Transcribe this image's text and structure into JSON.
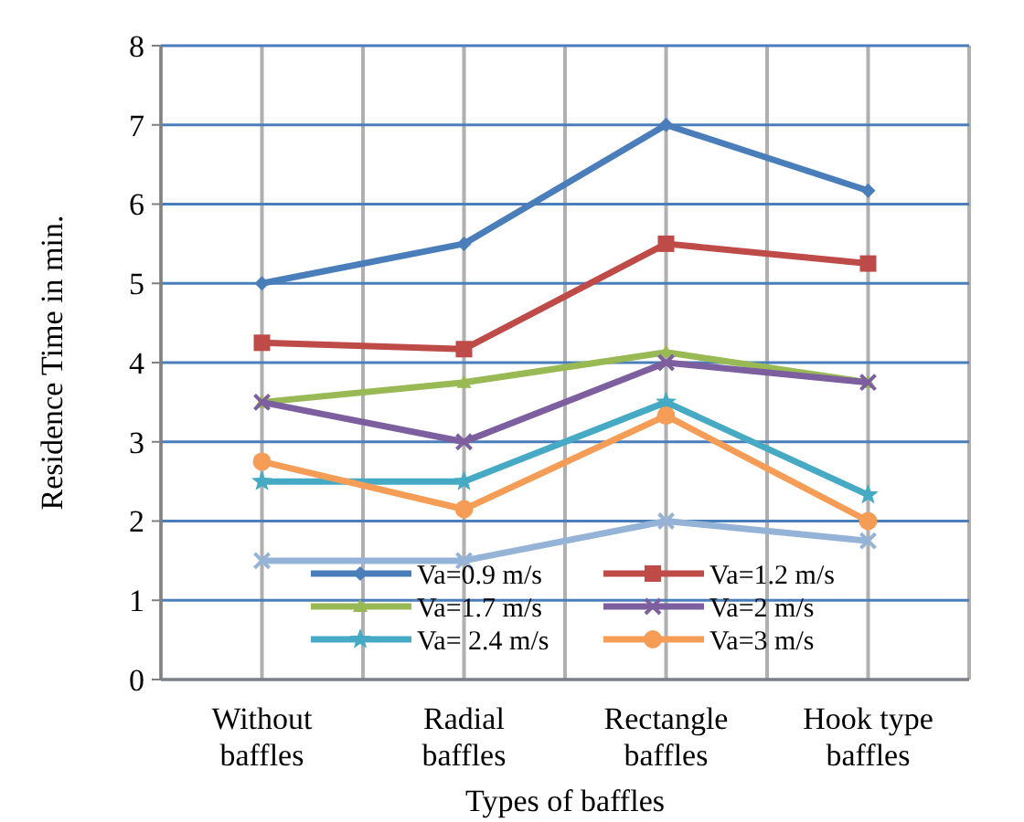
{
  "chart_data": {
    "type": "line",
    "xlabel": "Types of baffles",
    "ylabel": "Residence Time in min.",
    "categories": [
      "Without baffles",
      "Radial baffles",
      "Rectangle baffles",
      "Hook type baffles"
    ],
    "ylim": [
      0,
      8
    ],
    "yticks": [
      0,
      1,
      2,
      3,
      4,
      5,
      6,
      7,
      8
    ],
    "grid": true,
    "legend": "bottom",
    "series": [
      {
        "name": "Va=0.9 m/s",
        "color": "#4a7ebb",
        "marker": "diamond",
        "values": [
          5,
          5.5,
          7,
          6.17
        ]
      },
      {
        "name": "Va=1.2 m/s",
        "color": "#be4b48",
        "marker": "square",
        "values": [
          4.25,
          4.17,
          5.5,
          5.25
        ]
      },
      {
        "name": "Va=1.7 m/s",
        "color": "#98b954",
        "marker": "triangle",
        "values": [
          3.5,
          3.75,
          4.13,
          3.75
        ]
      },
      {
        "name": "Va=2 m/s",
        "color": "#7d5fa0",
        "marker": "cross",
        "values": [
          3.5,
          3,
          4,
          3.75
        ]
      },
      {
        "name": "Va= 2.4 m/s",
        "color": "#46aac5",
        "marker": "star",
        "values": [
          2.5,
          2.5,
          3.5,
          2.33
        ]
      },
      {
        "name": "Va=3 m/s",
        "color": "#f59d56",
        "marker": "circle",
        "values": [
          2.75,
          2.15,
          3.33,
          2
        ]
      },
      {
        "color": "#95b3d7",
        "marker": "cross",
        "values": [
          1.5,
          1.5,
          2,
          1.75
        ]
      }
    ]
  }
}
